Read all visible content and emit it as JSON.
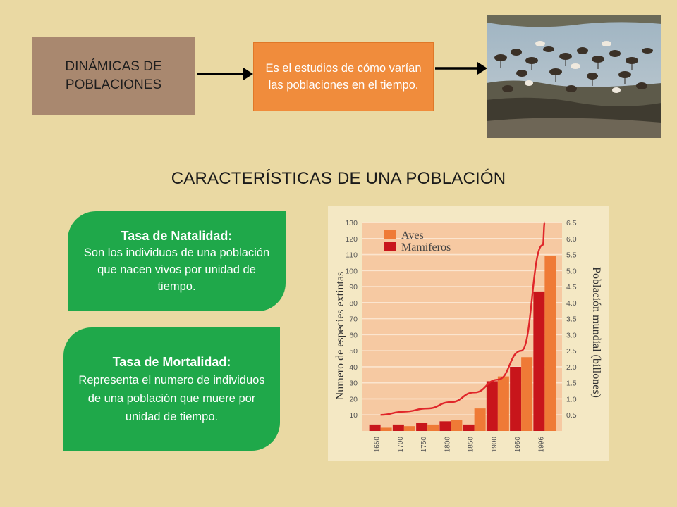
{
  "top_flow": {
    "topic": "DINÁMICAS DE POBLACIONES",
    "definition": "Es el estudios de cómo varían las poblaciones en el tiempo."
  },
  "heading": "CARACTERÍSTICAS DE UNA POBLACIÓN",
  "cards": {
    "natalidad": {
      "title": "Tasa de Natalidad:",
      "body": "Son  los individuos de una población que nacen vivos por unidad de tiempo."
    },
    "mortalidad": {
      "title": "Tasa de Mortalidad:",
      "body": "Representa el numero de individuos de una población que muere por unidad de tiempo."
    }
  },
  "chart_data": {
    "type": "bar",
    "categories": [
      "1650",
      "1700",
      "1750",
      "1800",
      "1850",
      "1900",
      "1950",
      "1996"
    ],
    "series": [
      {
        "name": "Aves",
        "values": [
          2,
          3,
          4,
          7,
          14,
          34,
          46,
          109
        ]
      },
      {
        "name": "Mamiferos",
        "values": [
          4,
          4,
          5,
          6,
          4,
          31,
          40,
          87
        ]
      }
    ],
    "line_series": {
      "axis": "right",
      "x": [
        1650,
        1700,
        1750,
        1800,
        1850,
        1900,
        1950,
        1996,
        2000
      ],
      "values": [
        0.5,
        0.6,
        0.7,
        0.9,
        1.2,
        1.6,
        2.5,
        5.8,
        6.5
      ]
    },
    "ylabel": "Numero de especies extintas",
    "y2label": "Población mundial (billones)",
    "ylim": [
      0,
      130
    ],
    "y2lim": [
      0,
      6.5
    ],
    "yticks": [
      10,
      20,
      30,
      40,
      50,
      60,
      70,
      80,
      90,
      100,
      110,
      120,
      130
    ],
    "y2ticks": [
      "0.5",
      "1.0",
      "1.5",
      "2.0",
      "2.5",
      "3.0",
      "3.5",
      "4.0",
      "4.5",
      "5.0",
      "5.5",
      "6.0",
      "6.5"
    ],
    "grid": true,
    "legend": "top-left",
    "colors": {
      "aves": "#ef7a36",
      "mamiferos": "#c8151b",
      "line": "#e0262a",
      "plot_bg": "#f6c9a2",
      "frame_bg": "#f4e8c4"
    }
  }
}
